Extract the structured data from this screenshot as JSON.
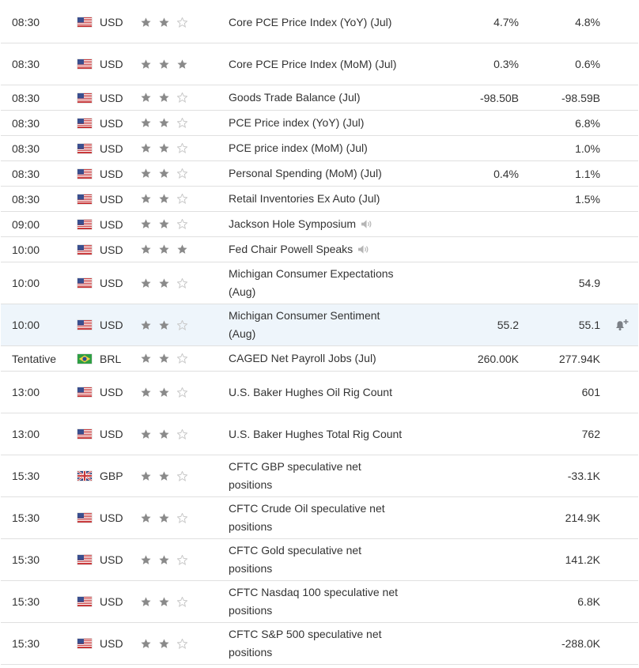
{
  "colors": {
    "star_filled": "#8a8a8a",
    "star_empty": "#c9c9c9",
    "row_highlight": "#eef5fb"
  },
  "rows": [
    {
      "time": "08:30",
      "flag": "us-flag-icon",
      "currency": "USD",
      "importance": 2,
      "event": "Core PCE Price Index (YoY) (Jul)",
      "actual": "4.7%",
      "forecast": "4.8%"
    },
    {
      "time": "08:30",
      "flag": "us-flag-icon",
      "currency": "USD",
      "importance": 3,
      "event": "Core PCE Price Index (MoM) (Jul)",
      "actual": "0.3%",
      "forecast": "0.6%"
    },
    {
      "time": "08:30",
      "flag": "us-flag-icon",
      "currency": "USD",
      "importance": 2,
      "event": "Goods Trade Balance (Jul)",
      "actual": "-98.50B",
      "forecast": "-98.59B"
    },
    {
      "time": "08:30",
      "flag": "us-flag-icon",
      "currency": "USD",
      "importance": 2,
      "event": "PCE Price index (YoY) (Jul)",
      "actual": "",
      "forecast": "6.8%"
    },
    {
      "time": "08:30",
      "flag": "us-flag-icon",
      "currency": "USD",
      "importance": 2,
      "event": "PCE price index (MoM) (Jul)",
      "actual": "",
      "forecast": "1.0%"
    },
    {
      "time": "08:30",
      "flag": "us-flag-icon",
      "currency": "USD",
      "importance": 2,
      "event": "Personal Spending (MoM) (Jul)",
      "actual": "0.4%",
      "forecast": "1.1%"
    },
    {
      "time": "08:30",
      "flag": "us-flag-icon",
      "currency": "USD",
      "importance": 2,
      "event": "Retail Inventories Ex Auto (Jul)",
      "actual": "",
      "forecast": "1.5%"
    },
    {
      "time": "09:00",
      "flag": "us-flag-icon",
      "currency": "USD",
      "importance": 2,
      "event": "Jackson Hole Symposium",
      "speech": true,
      "actual": "",
      "forecast": ""
    },
    {
      "time": "10:00",
      "flag": "us-flag-icon",
      "currency": "USD",
      "importance": 3,
      "event": "Fed Chair Powell Speaks",
      "speech": true,
      "actual": "",
      "forecast": ""
    },
    {
      "time": "10:00",
      "flag": "us-flag-icon",
      "currency": "USD",
      "importance": 2,
      "event": "Michigan Consumer Expectations (Aug)",
      "actual": "",
      "forecast": "54.9"
    },
    {
      "time": "10:00",
      "flag": "us-flag-icon",
      "currency": "USD",
      "importance": 2,
      "event": "Michigan Consumer Sentiment (Aug)",
      "actual": "55.2",
      "forecast": "55.1",
      "highlighted": true,
      "alert": "bell-plus-icon"
    },
    {
      "time": "Tentative",
      "flag": "br-flag-icon",
      "currency": "BRL",
      "importance": 2,
      "event": "CAGED Net Payroll Jobs (Jul)",
      "actual": "260.00K",
      "forecast": "277.94K"
    },
    {
      "time": "13:00",
      "flag": "us-flag-icon",
      "currency": "USD",
      "importance": 2,
      "event": "U.S. Baker Hughes Oil Rig Count",
      "actual": "",
      "forecast": "601"
    },
    {
      "time": "13:00",
      "flag": "us-flag-icon",
      "currency": "USD",
      "importance": 2,
      "event": "U.S. Baker Hughes Total Rig Count",
      "actual": "",
      "forecast": "762"
    },
    {
      "time": "15:30",
      "flag": "gb-flag-icon",
      "currency": "GBP",
      "importance": 2,
      "event": "CFTC GBP speculative net positions",
      "actual": "",
      "forecast": "-33.1K"
    },
    {
      "time": "15:30",
      "flag": "us-flag-icon",
      "currency": "USD",
      "importance": 2,
      "event": "CFTC Crude Oil speculative net positions",
      "actual": "",
      "forecast": "214.9K"
    },
    {
      "time": "15:30",
      "flag": "us-flag-icon",
      "currency": "USD",
      "importance": 2,
      "event": "CFTC Gold speculative net positions",
      "actual": "",
      "forecast": "141.2K"
    },
    {
      "time": "15:30",
      "flag": "us-flag-icon",
      "currency": "USD",
      "importance": 2,
      "event": "CFTC Nasdaq 100 speculative net positions",
      "actual": "",
      "forecast": "6.8K"
    },
    {
      "time": "15:30",
      "flag": "us-flag-icon",
      "currency": "USD",
      "importance": 2,
      "event": "CFTC S&P 500 speculative net positions",
      "actual": "",
      "forecast": "-288.0K"
    }
  ]
}
